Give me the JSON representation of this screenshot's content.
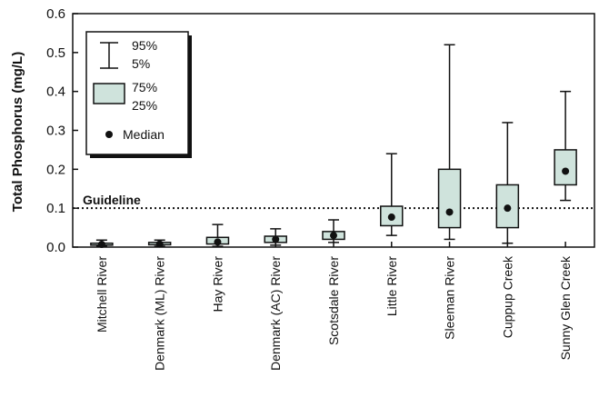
{
  "chart_data": {
    "type": "box",
    "ylabel": "Total Phosphorus (mg/L)",
    "ylim": [
      0,
      0.6
    ],
    "yticks": [
      "0.0",
      "0.1",
      "0.2",
      "0.3",
      "0.4",
      "0.5",
      "0.6"
    ],
    "guideline": {
      "label": "Guideline",
      "value": 0.1
    },
    "categories": [
      "Mitchell River",
      "Denmark (ML) River",
      "Hay River",
      "Denmark (AC) River",
      "Scotsdale River",
      "Little River",
      "Sleeman River",
      "Cuppup Creek",
      "Sunny Glen Creek"
    ],
    "boxes": [
      {
        "p5": 0.002,
        "p25": 0.005,
        "median": 0.007,
        "p75": 0.01,
        "p95": 0.018
      },
      {
        "p5": 0.002,
        "p25": 0.006,
        "median": 0.008,
        "p75": 0.012,
        "p95": 0.018
      },
      {
        "p5": 0.002,
        "p25": 0.008,
        "median": 0.013,
        "p75": 0.025,
        "p95": 0.058
      },
      {
        "p5": 0.005,
        "p25": 0.012,
        "median": 0.02,
        "p75": 0.028,
        "p95": 0.047
      },
      {
        "p5": 0.012,
        "p25": 0.02,
        "median": 0.03,
        "p75": 0.04,
        "p95": 0.07
      },
      {
        "p5": 0.03,
        "p25": 0.055,
        "median": 0.077,
        "p75": 0.105,
        "p95": 0.24
      },
      {
        "p5": 0.02,
        "p25": 0.05,
        "median": 0.09,
        "p75": 0.2,
        "p95": 0.52
      },
      {
        "p5": 0.01,
        "p25": 0.05,
        "median": 0.1,
        "p75": 0.16,
        "p95": 0.32
      },
      {
        "p5": 0.12,
        "p25": 0.16,
        "median": 0.195,
        "p75": 0.25,
        "p95": 0.4
      }
    ],
    "legend": {
      "whisker_top": "95%",
      "whisker_bottom": "5%",
      "box_top": "75%",
      "box_bottom": "25%",
      "median": "Median"
    },
    "box_fill": "#cfe3dc",
    "guideline_style": "dotted"
  }
}
